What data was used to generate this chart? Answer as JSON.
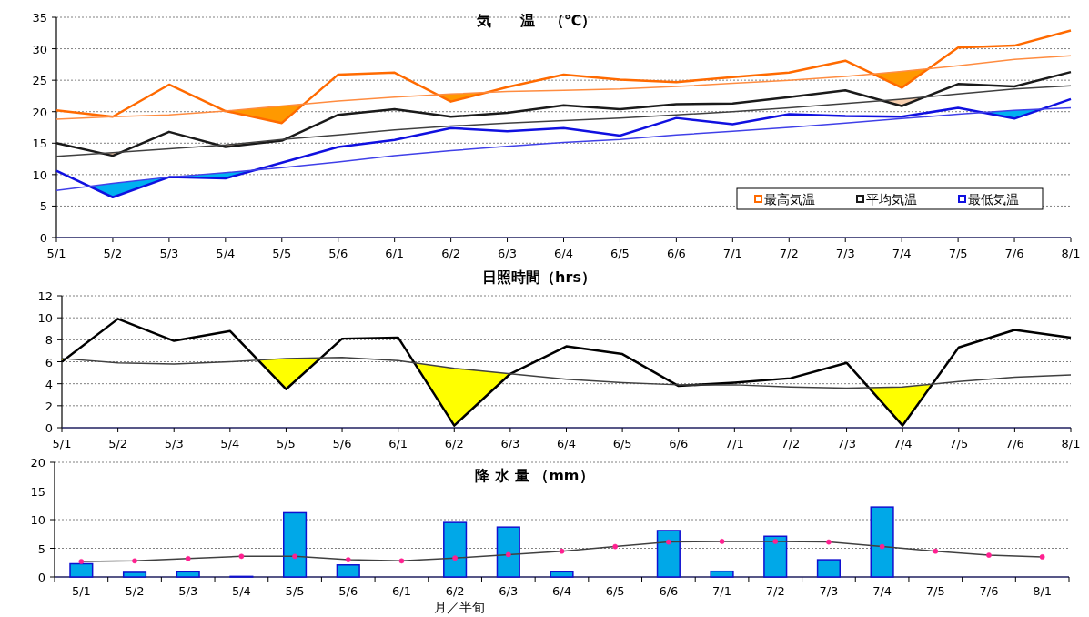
{
  "chart_data": [
    {
      "type": "line",
      "title": "気　　温　（℃）",
      "categories": [
        "5/1",
        "5/2",
        "5/3",
        "5/4",
        "5/5",
        "5/6",
        "6/1",
        "6/2",
        "6/3",
        "6/4",
        "6/5",
        "6/6",
        "7/1",
        "7/2",
        "7/3",
        "7/4",
        "7/5",
        "7/6",
        "8/1"
      ],
      "series": [
        {
          "name": "最高気温",
          "color": "#ff6a00",
          "values": [
            20.2,
            19.2,
            24.3,
            20.1,
            18.2,
            25.9,
            26.2,
            21.6,
            23.9,
            25.9,
            25.1,
            24.7,
            25.5,
            26.2,
            28.1,
            23.8,
            30.2,
            30.5,
            32.9
          ]
        },
        {
          "color": "#ff8c40",
          "values": [
            18.8,
            19.2,
            19.5,
            20.1,
            20.9,
            21.7,
            22.3,
            22.8,
            23.2,
            23.4,
            23.6,
            24.0,
            24.5,
            25.0,
            25.6,
            26.4,
            27.3,
            28.3,
            28.9
          ]
        },
        {
          "name": "平均気温",
          "color": "#1a1a1a",
          "values": [
            15.0,
            13.0,
            16.8,
            14.4,
            15.4,
            19.5,
            20.4,
            19.2,
            19.8,
            21.0,
            20.4,
            21.2,
            21.3,
            22.3,
            23.4,
            20.9,
            24.4,
            24.0,
            26.3
          ]
        },
        {
          "color": "#404040",
          "values": [
            12.9,
            13.5,
            14.1,
            14.7,
            15.6,
            16.3,
            17.1,
            17.7,
            18.2,
            18.6,
            19.0,
            19.5,
            20.0,
            20.6,
            21.3,
            22.0,
            22.8,
            23.6,
            24.1
          ]
        },
        {
          "name": "最低気温",
          "color": "#1010e0",
          "values": [
            10.6,
            6.4,
            9.6,
            9.4,
            11.9,
            14.4,
            15.5,
            17.4,
            16.9,
            17.4,
            16.2,
            19.0,
            18.0,
            19.6,
            19.3,
            19.2,
            20.6,
            18.9,
            22.0
          ]
        },
        {
          "color": "#4040e8",
          "values": [
            7.5,
            8.6,
            9.6,
            10.3,
            11.1,
            12.0,
            13.0,
            13.8,
            14.5,
            15.1,
            15.6,
            16.3,
            16.9,
            17.5,
            18.2,
            18.9,
            19.6,
            20.2,
            20.6
          ]
        }
      ],
      "ylim": [
        0,
        35
      ],
      "yticks": [
        0,
        5,
        10,
        15,
        20,
        25,
        30,
        35
      ],
      "grid": "y",
      "legend": "bottom right"
    },
    {
      "type": "line",
      "title": "日照時間（hrs）",
      "categories": [
        "5/1",
        "5/2",
        "5/3",
        "5/4",
        "5/5",
        "5/6",
        "6/1",
        "6/2",
        "6/3",
        "6/4",
        "6/5",
        "6/6",
        "7/1",
        "7/2",
        "7/3",
        "7/4",
        "7/5",
        "7/6",
        "8/1"
      ],
      "series": [
        {
          "color": "#000000",
          "values": [
            6.0,
            9.9,
            7.9,
            8.8,
            3.5,
            8.1,
            8.2,
            0.2,
            4.9,
            7.4,
            6.7,
            3.8,
            4.1,
            4.5,
            5.9,
            0.2,
            7.3,
            8.9,
            8.2
          ]
        },
        {
          "color": "#404040",
          "values": [
            6.3,
            5.9,
            5.8,
            6.0,
            6.3,
            6.4,
            6.1,
            5.4,
            4.9,
            4.4,
            4.1,
            3.9,
            3.9,
            3.7,
            3.6,
            3.7,
            4.2,
            4.6,
            4.8
          ]
        }
      ],
      "ylim": [
        0,
        12
      ],
      "yticks": [
        0,
        2,
        4,
        6,
        8,
        10,
        12
      ],
      "grid": "y"
    },
    {
      "type": "bar",
      "title": "降 水 量 （mm）",
      "xlabel": "月／半旬",
      "categories": [
        "5/1",
        "5/2",
        "5/3",
        "5/4",
        "5/5",
        "5/6",
        "6/1",
        "6/2",
        "6/3",
        "6/4",
        "6/5",
        "6/6",
        "7/1",
        "7/2",
        "7/3",
        "7/4",
        "7/5",
        "7/6",
        "8/1"
      ],
      "series": [
        {
          "color": "#00a8e8",
          "values": [
            2.3,
            0.8,
            0.9,
            0.1,
            11.2,
            2.1,
            0,
            9.5,
            8.7,
            0.9,
            0,
            8.1,
            1.0,
            7.1,
            3.0,
            12.2,
            0,
            0,
            0
          ]
        },
        {
          "type": "line",
          "color": "#404040",
          "marker": "circle",
          "values": [
            2.7,
            2.8,
            3.2,
            3.6,
            3.6,
            3.0,
            2.8,
            3.3,
            3.9,
            4.5,
            5.3,
            6.1,
            6.2,
            6.2,
            6.1,
            5.3,
            4.5,
            3.8,
            3.5
          ]
        }
      ],
      "ylim": [
        0,
        20
      ],
      "yticks": [
        0,
        5,
        10,
        15,
        20
      ],
      "grid": "y"
    }
  ]
}
